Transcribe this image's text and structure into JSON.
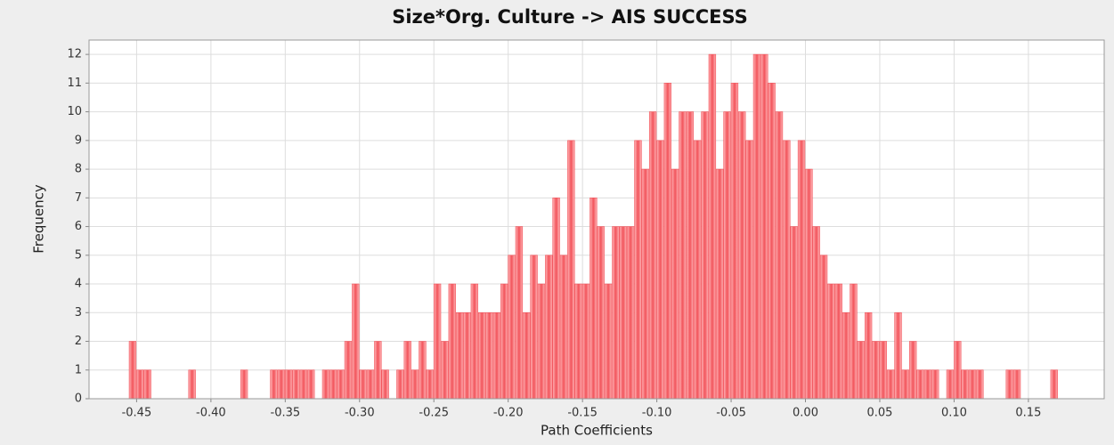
{
  "chart_data": {
    "type": "histogram",
    "title": "Size*Org. Culture -> AIS SUCCESS",
    "x_label": "Path Coefficients",
    "y_label": "Frequency",
    "color": "#f2545b",
    "grid": true,
    "xlim": [
      -0.482,
      0.201
    ],
    "ylim": [
      0,
      12.5
    ],
    "xticks": [
      {
        "value": -0.45,
        "label": "-0.45"
      },
      {
        "value": -0.4,
        "label": "-0.40"
      },
      {
        "value": -0.35,
        "label": "-0.35"
      },
      {
        "value": -0.3,
        "label": "-0.30"
      },
      {
        "value": -0.25,
        "label": "-0.25"
      },
      {
        "value": -0.2,
        "label": "-0.20"
      },
      {
        "value": -0.15,
        "label": "-0.15"
      },
      {
        "value": -0.1,
        "label": "-0.10"
      },
      {
        "value": -0.05,
        "label": "-0.05"
      },
      {
        "value": 0,
        "label": "0.00"
      },
      {
        "value": 0.05,
        "label": "0.05"
      },
      {
        "value": 0.1,
        "label": "0.10"
      },
      {
        "value": 0.15,
        "label": "0.15"
      }
    ],
    "yticks": [
      0,
      1,
      2,
      3,
      4,
      5,
      6,
      7,
      8,
      9,
      10,
      11,
      12
    ],
    "bins": [
      -0.46,
      -0.455,
      -0.45,
      -0.445,
      -0.44,
      -0.435,
      -0.43,
      -0.425,
      -0.42,
      -0.415,
      -0.41,
      -0.405,
      -0.4,
      -0.395,
      -0.39,
      -0.385,
      -0.38,
      -0.375,
      -0.37,
      -0.365,
      -0.36,
      -0.355,
      -0.35,
      -0.345,
      -0.34,
      -0.335,
      -0.33,
      -0.325,
      -0.32,
      -0.315,
      -0.31,
      -0.305,
      -0.3,
      -0.295,
      -0.29,
      -0.285,
      -0.28,
      -0.275,
      -0.27,
      -0.265,
      -0.26,
      -0.255,
      -0.25,
      -0.245,
      -0.24,
      -0.235,
      -0.23,
      -0.225,
      -0.22,
      -0.215,
      -0.21,
      -0.205,
      -0.2,
      -0.195,
      -0.19,
      -0.185,
      -0.18,
      -0.175,
      -0.17,
      -0.165,
      -0.16,
      -0.155,
      -0.15,
      -0.145,
      -0.14,
      -0.135,
      -0.13,
      -0.125,
      -0.12,
      -0.115,
      -0.11,
      -0.105,
      -0.1,
      -0.095,
      -0.09,
      -0.085,
      -0.08,
      -0.075,
      -0.07,
      -0.065,
      -0.06,
      -0.055,
      -0.05,
      -0.045,
      -0.04,
      -0.035,
      -0.03,
      -0.025,
      -0.02,
      -0.015,
      -0.01,
      -0.005,
      0,
      0.005,
      0.01,
      0.015,
      0.02,
      0.025,
      0.03,
      0.035,
      0.04,
      0.045,
      0.05,
      0.055,
      0.06,
      0.065,
      0.07,
      0.075,
      0.08,
      0.085,
      0.09,
      0.095,
      0.1,
      0.105,
      0.11,
      0.115,
      0.12,
      0.125,
      0.13,
      0.135,
      0.14,
      0.145,
      0.15,
      0.155,
      0.16,
      0.165,
      0.17,
      0.175
    ],
    "counts": [
      0,
      2,
      1,
      1,
      0,
      0,
      0,
      0,
      0,
      1,
      0,
      0,
      0,
      0,
      0,
      0,
      1,
      0,
      0,
      0,
      1,
      1,
      1,
      1,
      1,
      1,
      0,
      1,
      1,
      1,
      2,
      4,
      1,
      1,
      2,
      1,
      0,
      1,
      2,
      1,
      2,
      1,
      4,
      2,
      4,
      3,
      3,
      4,
      3,
      3,
      3,
      4,
      5,
      6,
      3,
      5,
      4,
      5,
      7,
      5,
      9,
      4,
      4,
      7,
      6,
      4,
      6,
      6,
      6,
      9,
      8,
      10,
      9,
      11,
      8,
      10,
      10,
      9,
      10,
      12,
      8,
      10,
      11,
      10,
      9,
      12,
      12,
      11,
      10,
      9,
      6,
      9,
      8,
      6,
      5,
      4,
      4,
      3,
      4,
      2,
      3,
      2,
      2,
      1,
      3,
      1,
      2,
      1,
      1,
      1,
      0,
      1,
      2,
      1,
      1,
      1,
      0,
      0,
      0,
      1,
      1,
      0,
      0,
      0,
      0,
      1,
      0
    ]
  }
}
